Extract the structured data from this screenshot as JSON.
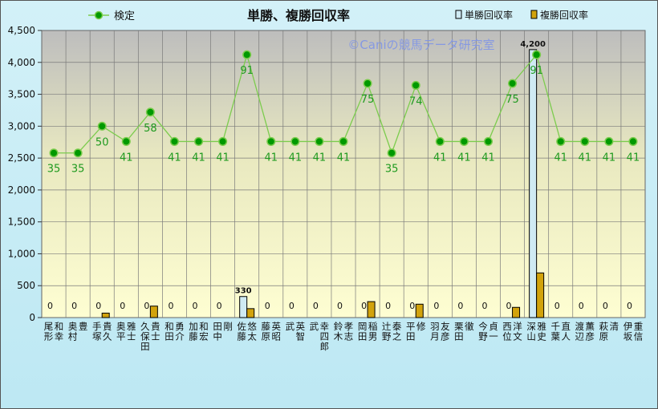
{
  "chart_data": {
    "type": "bar",
    "title": "単勝、複勝回収率",
    "watermark": "©Caniの競馬データ研究室",
    "legend": {
      "line": "検定",
      "bar1": "単勝回収率",
      "bar2": "複勝回収率"
    },
    "ylim": [
      0,
      4500
    ],
    "yticks": [
      0,
      500,
      1000,
      1500,
      2000,
      2500,
      3000,
      3500,
      4000,
      4500
    ],
    "ytick_labels": [
      "0",
      "500",
      "1,000",
      "1,500",
      "2,000",
      "2,500",
      "3,000",
      "3,500",
      "4,000",
      "4,500"
    ],
    "categories": [
      "尾形 和幸",
      "奥村 豊",
      "手塚 貴久",
      "奥平 雅士",
      "久保田 貴士",
      "和田 勇介",
      "加藤 和宏",
      "田中 剛",
      "佐藤 悠太",
      "藤原 英昭",
      "武 英智",
      "武 幸四郎",
      "鈴木 孝志",
      "岡田 稲男",
      "辻野 泰之",
      "平田 修",
      "羽月 友彦",
      "栗田 徹",
      "今野 貞一",
      "西位 洋文",
      "深山 雅史",
      "千葉 直人",
      "渡辺 薫彦",
      "萩原 清",
      "伊坂 重信"
    ],
    "series": [
      {
        "name": "単勝回収率",
        "values": [
          0,
          0,
          0,
          0,
          0,
          0,
          0,
          0,
          330,
          0,
          0,
          0,
          0,
          0,
          0,
          0,
          0,
          0,
          0,
          0,
          4200,
          0,
          0,
          0,
          0
        ],
        "labels": [
          "0",
          "0",
          "0",
          "0",
          "0",
          "0",
          "0",
          "0",
          "330",
          "0",
          "0",
          "0",
          "0",
          "0",
          "0",
          "0",
          "0",
          "0",
          "0",
          "0",
          "4,200",
          "0",
          "0",
          "0",
          "0"
        ]
      },
      {
        "name": "複勝回収率",
        "values": [
          0,
          0,
          70,
          0,
          180,
          0,
          0,
          0,
          140,
          0,
          0,
          0,
          0,
          250,
          0,
          210,
          0,
          0,
          0,
          160,
          700,
          0,
          0,
          0,
          0
        ]
      },
      {
        "name": "検定",
        "values": [
          2580,
          2580,
          3000,
          2760,
          3220,
          2760,
          2760,
          2760,
          4120,
          2760,
          2760,
          2760,
          2760,
          3670,
          2580,
          3640,
          2760,
          2760,
          2760,
          3670,
          4120,
          2760,
          2760,
          2760,
          2760
        ],
        "labels": [
          "35",
          "35",
          "50",
          "41",
          "58",
          "41",
          "41",
          "41",
          "91",
          "41",
          "41",
          "41",
          "41",
          "75",
          "35",
          "74",
          "41",
          "41",
          "41",
          "75",
          "91",
          "41",
          "41",
          "41",
          "41"
        ]
      }
    ],
    "colors": {
      "line": "#7ccc4e",
      "marker": "#009900",
      "label_line": "#1e9a1e",
      "bar1": "#cfeaf3",
      "bar2": "#d2a30c",
      "plot_top": "#bdbdbd",
      "plot_bottom": "#fefed2",
      "background": "#c6ecf5"
    },
    "grid": "horizontal"
  }
}
